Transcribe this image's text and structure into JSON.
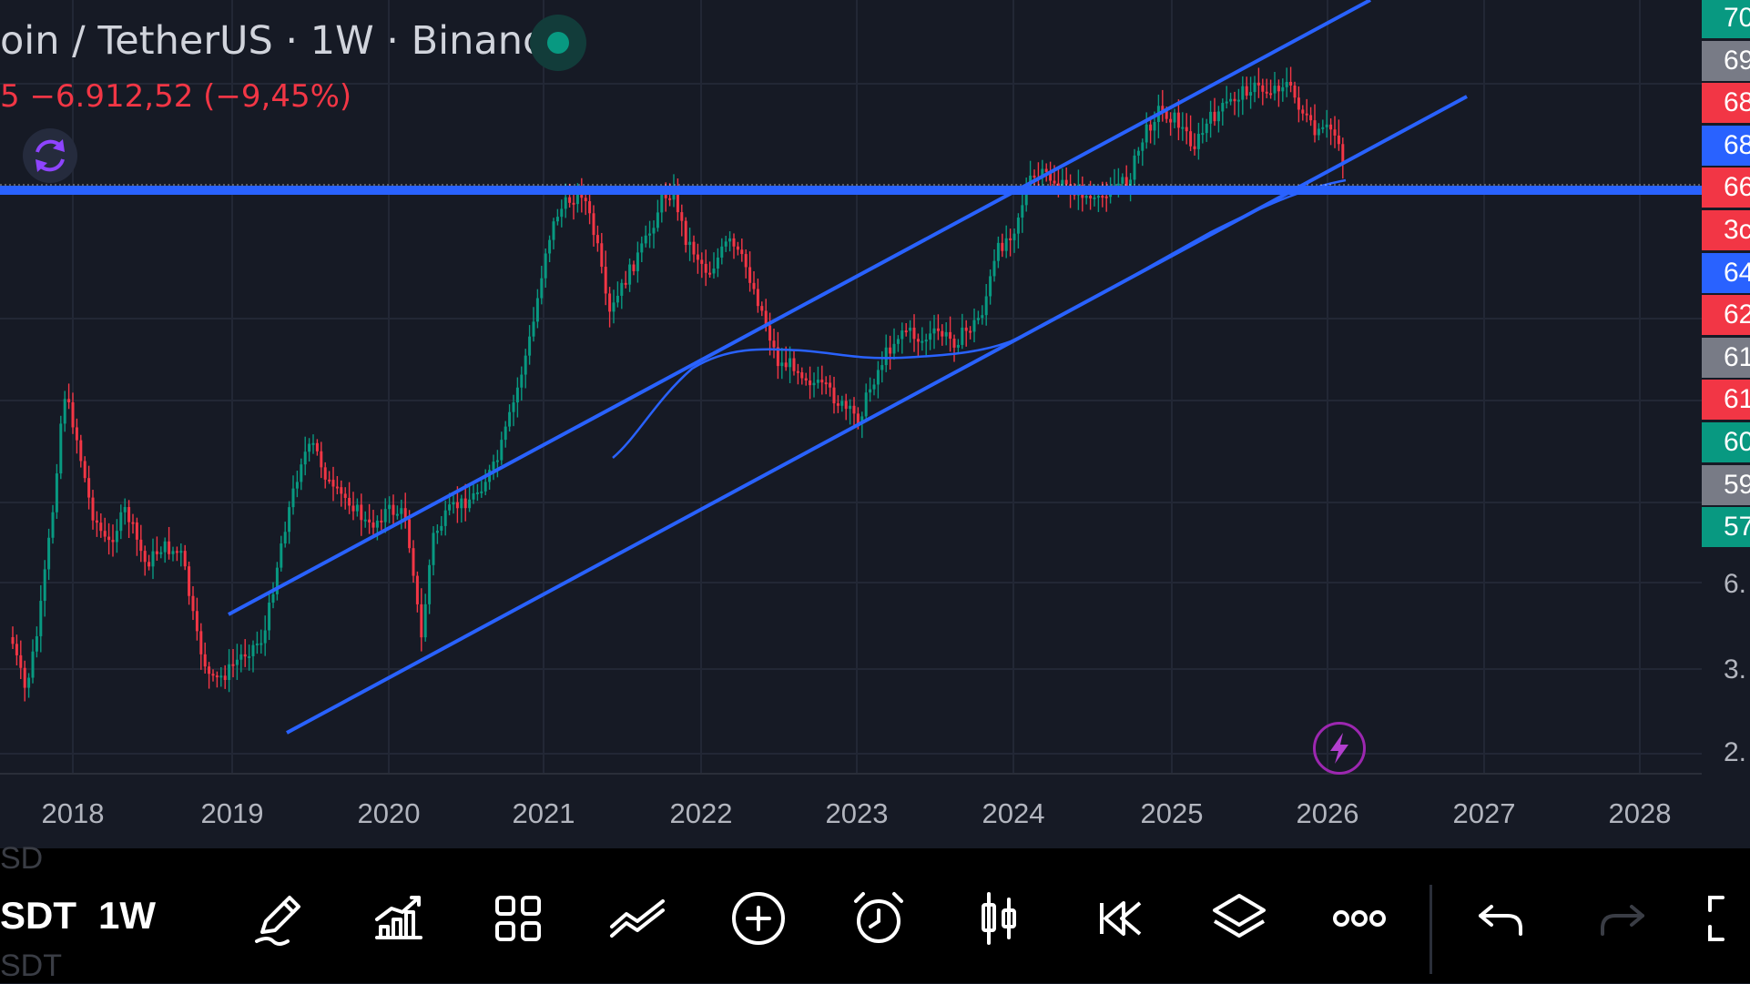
{
  "header": {
    "title": "oin / TetherUS · 1W · Binance",
    "change": "5  −6.912,52 (−9,45%)",
    "status_color": "#089981"
  },
  "price_scale": {
    "tags": [
      {
        "text": "70",
        "color": "#089981"
      },
      {
        "text": "69",
        "color": "#787b86"
      },
      {
        "text": "68",
        "color": "#f23645"
      },
      {
        "text": "68",
        "color": "#2962ff"
      },
      {
        "text": "66",
        "color": "#f23645"
      },
      {
        "text": "3c",
        "color": "#f23645"
      },
      {
        "text": "64",
        "color": "#2962ff"
      },
      {
        "text": "62",
        "color": "#f23645"
      },
      {
        "text": "61",
        "color": "#787b86"
      },
      {
        "text": "61",
        "color": "#f23645"
      },
      {
        "text": "60",
        "color": "#089981"
      },
      {
        "text": "59",
        "color": "#787b86"
      },
      {
        "text": "57",
        "color": "#089981"
      }
    ],
    "axis_values": [
      "6.",
      "3.",
      "2."
    ]
  },
  "time_axis": {
    "years": [
      "2018",
      "2019",
      "2020",
      "2021",
      "2022",
      "2023",
      "2024",
      "2025",
      "2026",
      "2027",
      "2028"
    ]
  },
  "toolbar": {
    "ghost_top": "SD",
    "ghost_bottom": "SDT",
    "symbol": "SDT",
    "interval": "1W",
    "buttons": [
      {
        "name": "drawing-tools-icon"
      },
      {
        "name": "indicators-icon"
      },
      {
        "name": "layouts-icon"
      },
      {
        "name": "chart-type-icon"
      },
      {
        "name": "add-icon"
      },
      {
        "name": "alert-clock-icon"
      },
      {
        "name": "candles-icon"
      },
      {
        "name": "replay-icon"
      },
      {
        "name": "layers-icon"
      },
      {
        "name": "more-icon"
      },
      {
        "name": "undo-icon"
      },
      {
        "name": "redo-icon"
      },
      {
        "name": "fullscreen-icon"
      }
    ]
  },
  "colors": {
    "background": "#161a25",
    "up": "#089981",
    "down": "#f23645",
    "drawing": "#2962ff",
    "accent": "#9c27b0"
  },
  "chart_data": {
    "type": "candlestick",
    "x_axis_years": [
      "2018",
      "2019",
      "2020",
      "2021",
      "2022",
      "2023",
      "2024",
      "2025",
      "2026",
      "2027",
      "2028"
    ],
    "y_axis_labels": [
      "6.",
      "3.",
      "2."
    ],
    "y_scale": "log",
    "grid": true
  }
}
